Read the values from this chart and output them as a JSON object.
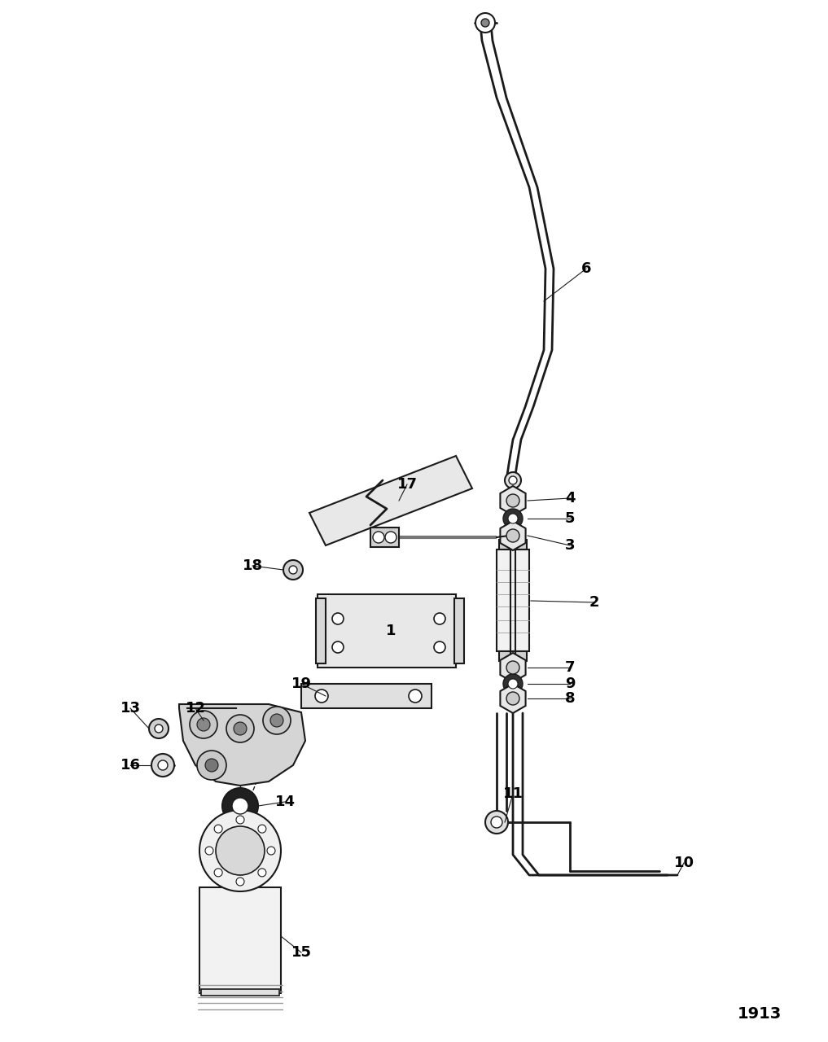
{
  "background_color": "#ffffff",
  "line_color": "#1a1a1a",
  "label_color": "#000000",
  "page_number": "1913",
  "figsize": [
    10.17,
    12.8
  ],
  "dpi": 100
}
